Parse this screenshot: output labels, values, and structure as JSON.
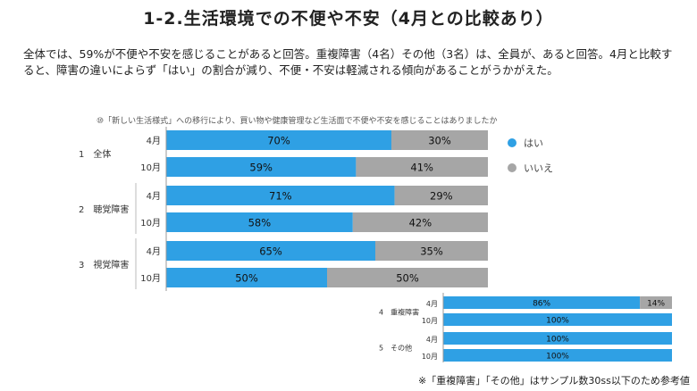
{
  "title": "1-2.生活環境での不便や不安（4月との比較あり）",
  "summary": "全体では、59%が不便や不安を感じることがあると回答。重複障害（4名）その他（3名）は、全員が、あると回答。4月と比較すると、障害の違いによらず「はい」の割合が減り、不便・不安は軽減される傾向があることがうかがえた。",
  "question": "⑩「新しい生活様式」への移行により、買い物や健康管理など生活面で不便や不安を感じることはありましたか",
  "legend": [
    {
      "label": "はい",
      "color": "#2fa0e4"
    },
    {
      "label": "いいえ",
      "color": "#a6a6a6"
    }
  ],
  "footnote": "※「重複障害」「その他」はサンプル数30ss以下のため参考値",
  "colors": {
    "yes": "#2fa0e4",
    "no": "#a6a6a6"
  },
  "chart_data": [
    {
      "type": "bar",
      "orientation": "horizontal",
      "stacked": true,
      "percent": true,
      "title": "",
      "groups": [
        "1　全体",
        "2　聴覚障害",
        "3　視覚障害"
      ],
      "categories": [
        "4月",
        "10月"
      ],
      "series": [
        {
          "name": "はい",
          "values": [
            [
              70,
              59
            ],
            [
              71,
              58
            ],
            [
              65,
              50
            ]
          ]
        },
        {
          "name": "いいえ",
          "values": [
            [
              30,
              41
            ],
            [
              29,
              42
            ],
            [
              35,
              50
            ]
          ]
        }
      ],
      "labels": {
        "はい": [
          [
            "70%",
            "59%"
          ],
          [
            "71%",
            "58%"
          ],
          [
            "65%",
            "50%"
          ]
        ],
        "いいえ": [
          [
            "30%",
            "41%"
          ],
          [
            "29%",
            "42%"
          ],
          [
            "35%",
            "50%"
          ]
        ]
      },
      "xlim": [
        0,
        100
      ]
    },
    {
      "type": "bar",
      "orientation": "horizontal",
      "stacked": true,
      "percent": true,
      "title": "",
      "groups": [
        "4　重複障害",
        "5　その他"
      ],
      "categories": [
        "4月",
        "10月"
      ],
      "series": [
        {
          "name": "はい",
          "values": [
            [
              86,
              100
            ],
            [
              100,
              100
            ]
          ]
        },
        {
          "name": "いいえ",
          "values": [
            [
              14,
              0
            ],
            [
              0,
              0
            ]
          ]
        }
      ],
      "labels": {
        "はい": [
          [
            "86%",
            "100%"
          ],
          [
            "100%",
            "100%"
          ]
        ],
        "いいえ": [
          [
            "14%",
            ""
          ],
          [
            "",
            ""
          ]
        ]
      },
      "xlim": [
        0,
        100
      ]
    }
  ]
}
